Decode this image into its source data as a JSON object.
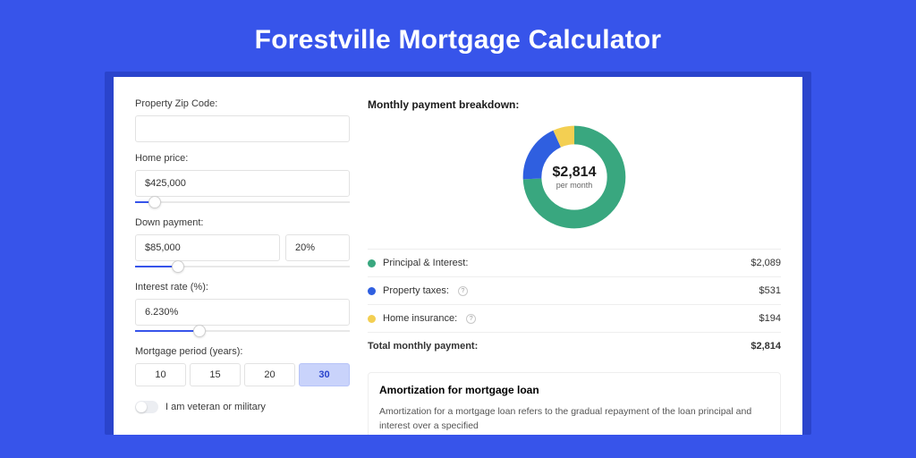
{
  "page_title": "Forestville Mortgage Calculator",
  "colors": {
    "page_bg": "#3754ea",
    "card_bg": "#ffffff",
    "shadow_bg": "#2a44cc",
    "accent": "#3754ea",
    "pill_active_bg": "#c9d3fb"
  },
  "form": {
    "zip_label": "Property Zip Code:",
    "zip_value": "",
    "home_price_label": "Home price:",
    "home_price_value": "$425,000",
    "home_price_slider_pct": 9,
    "down_payment_label": "Down payment:",
    "down_payment_value": "$85,000",
    "down_payment_pct": "20%",
    "down_payment_slider_pct": 20,
    "interest_label": "Interest rate (%):",
    "interest_value": "6.230%",
    "interest_slider_pct": 30,
    "period_label": "Mortgage period (years):",
    "period_options": [
      "10",
      "15",
      "20",
      "30"
    ],
    "period_selected": "30",
    "veteran_label": "I am veteran or military",
    "veteran_on": false
  },
  "breakdown": {
    "title": "Monthly payment breakdown:",
    "donut": {
      "amount": "$2,814",
      "subtitle": "per month",
      "ring_width": 16,
      "segments": [
        {
          "label": "Principal & Interest:",
          "value": "$2,089",
          "pct": 74.2,
          "color": "#39a77f",
          "info": false
        },
        {
          "label": "Property taxes:",
          "value": "$531",
          "pct": 18.9,
          "color": "#2f5fe0",
          "info": true
        },
        {
          "label": "Home insurance:",
          "value": "$194",
          "pct": 6.9,
          "color": "#f3cf52",
          "info": true
        }
      ],
      "total_label": "Total monthly payment:",
      "total_value": "$2,814"
    }
  },
  "amortization": {
    "title": "Amortization for mortgage loan",
    "body": "Amortization for a mortgage loan refers to the gradual repayment of the loan principal and interest over a specified"
  }
}
